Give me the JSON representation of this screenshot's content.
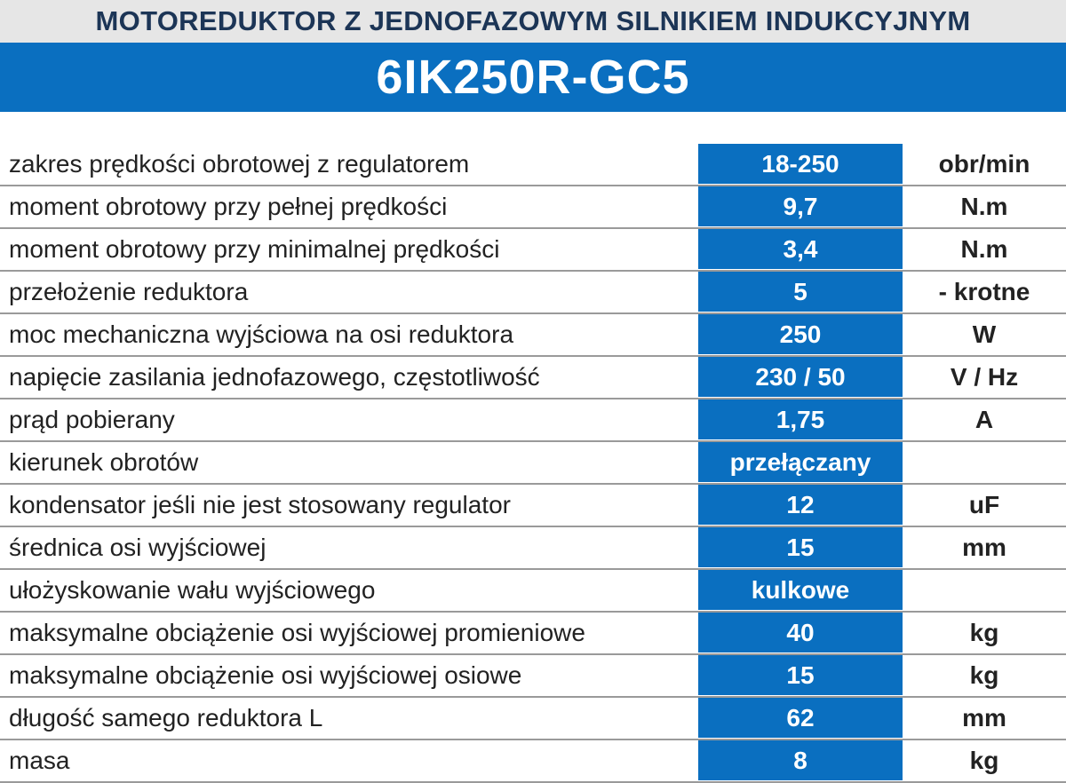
{
  "header": {
    "title": "MOTOREDUKTOR Z JEDNOFAZOWYM SILNIKIEM INDUKCYJNYM",
    "model": "6IK250R-GC5"
  },
  "colors": {
    "accent_blue": "#0a6fc0",
    "title_navy": "#1c3556",
    "header_gray": "#e6e6e6"
  },
  "specs": [
    {
      "label": "zakres prędkości obrotowej z regulatorem",
      "value": "18-250",
      "unit": "obr/min"
    },
    {
      "label": "moment obrotowy przy pełnej prędkości",
      "value": "9,7",
      "unit": "N.m"
    },
    {
      "label": "moment obrotowy przy minimalnej prędkości",
      "value": "3,4",
      "unit": "N.m"
    },
    {
      "label": "przełożenie reduktora",
      "value": "5",
      "unit": "- krotne"
    },
    {
      "label": "moc mechaniczna wyjściowa na osi reduktora",
      "value": "250",
      "unit": "W"
    },
    {
      "label": "napięcie zasilania jednofazowego, częstotliwość",
      "value": "230 / 50",
      "unit": "V / Hz"
    },
    {
      "label": "prąd pobierany",
      "value": "1,75",
      "unit": "A"
    },
    {
      "label": "kierunek obrotów",
      "value": "przełączany",
      "unit": ""
    },
    {
      "label": "kondensator jeśli nie jest stosowany regulator",
      "value": "12",
      "unit": "uF"
    },
    {
      "label": "średnica osi wyjściowej",
      "value": "15",
      "unit": "mm"
    },
    {
      "label": "ułożyskowanie wału wyjściowego",
      "value": "kulkowe",
      "unit": ""
    },
    {
      "label": "maksymalne obciążenie osi wyjściowej promieniowe",
      "value": "40",
      "unit": "kg"
    },
    {
      "label": "maksymalne obciążenie osi wyjściowej osiowe",
      "value": "15",
      "unit": "kg"
    },
    {
      "label": "długość samego reduktora L",
      "value": "62",
      "unit": "mm"
    },
    {
      "label": "masa",
      "value": "8",
      "unit": "kg"
    }
  ]
}
